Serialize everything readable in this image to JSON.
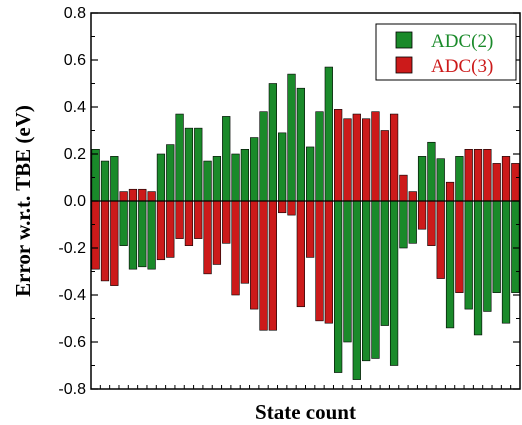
{
  "chart_data": {
    "type": "bar",
    "title": "",
    "xlabel": "State count",
    "ylabel": "Error w.r.t. TBE (eV)",
    "ylim": [
      -0.8,
      0.8
    ],
    "yticks": [
      "0.8",
      "0.6",
      "0.4",
      "0.2",
      "0.0",
      "-0.2",
      "-0.4",
      "-0.6",
      "-0.8"
    ],
    "grid": false,
    "legend_position": "top-right",
    "zero_line": true,
    "series": [
      {
        "name": "ADC(2)",
        "color": "#1a8a2a",
        "values": [
          0.22,
          0.17,
          0.19,
          -0.19,
          -0.29,
          -0.28,
          -0.29,
          0.2,
          0.24,
          0.37,
          0.31,
          0.31,
          0.17,
          0.19,
          0.36,
          0.2,
          0.22,
          0.27,
          0.38,
          0.5,
          0.29,
          0.54,
          0.48,
          0.23,
          0.38,
          0.57,
          -0.73,
          -0.6,
          -0.76,
          -0.68,
          -0.67,
          -0.53,
          -0.7,
          -0.2,
          -0.18,
          0.19,
          0.25,
          0.18,
          -0.54,
          0.19,
          -0.46,
          -0.57,
          -0.47,
          -0.39,
          -0.52,
          -0.39
        ]
      },
      {
        "name": "ADC(3)",
        "color": "#cc1a1a",
        "values": [
          -0.29,
          -0.34,
          -0.36,
          0.04,
          0.05,
          0.05,
          0.04,
          -0.25,
          -0.24,
          -0.16,
          -0.19,
          -0.16,
          -0.31,
          -0.27,
          -0.18,
          -0.4,
          -0.35,
          -0.46,
          -0.55,
          -0.55,
          -0.05,
          -0.06,
          -0.45,
          -0.24,
          -0.51,
          -0.52,
          0.39,
          0.35,
          0.37,
          0.35,
          0.38,
          0.3,
          0.37,
          0.11,
          0.04,
          -0.12,
          -0.19,
          -0.33,
          0.08,
          -0.39,
          0.22,
          0.22,
          0.22,
          0.16,
          0.19,
          0.16
        ]
      }
    ]
  }
}
